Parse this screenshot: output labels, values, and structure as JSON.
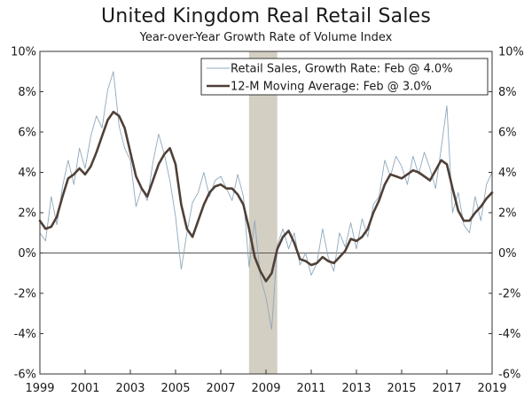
{
  "chart_data": {
    "type": "line",
    "title": "United Kingdom Real Retail Sales",
    "subtitle": "Year-over-Year Growth Rate of Volume Index",
    "xlabel": "",
    "ylabel": "",
    "xlim": [
      1999.0,
      2019.0
    ],
    "ylim": [
      -6,
      10
    ],
    "y_ticks": [
      10,
      8,
      6,
      4,
      2,
      0,
      -2,
      -4,
      -6
    ],
    "y_tick_labels_left": [
      "10%",
      "8%",
      "6%",
      "4%",
      "2%",
      "0%",
      "-2%",
      "-4%",
      "-6%"
    ],
    "y_tick_labels_right": [
      "10%",
      "8%",
      "6%",
      "4%",
      "2%",
      "0%",
      "-2%",
      "-4%",
      "-6%"
    ],
    "x_ticks": [
      1999,
      2001,
      2003,
      2005,
      2007,
      2009,
      2011,
      2013,
      2015,
      2017,
      2019
    ],
    "x_tick_labels": [
      "1999",
      "2001",
      "2003",
      "2005",
      "2007",
      "2009",
      "2011",
      "2013",
      "2015",
      "2017",
      "2019"
    ],
    "recession_shade": {
      "start": 2008.25,
      "end": 2009.5,
      "color": "#d4cfc3"
    },
    "legend": {
      "position": "top-right"
    },
    "series": [
      {
        "name": "Retail Sales, Growth Rate: Feb @ 4.0%",
        "color": "#8fa8bb",
        "style": "thin",
        "x": [
          1999.0,
          1999.25,
          1999.5,
          1999.75,
          2000.0,
          2000.25,
          2000.5,
          2000.75,
          2001.0,
          2001.25,
          2001.5,
          2001.75,
          2002.0,
          2002.25,
          2002.5,
          2002.75,
          2003.0,
          2003.25,
          2003.5,
          2003.75,
          2004.0,
          2004.25,
          2004.5,
          2004.75,
          2005.0,
          2005.25,
          2005.5,
          2005.75,
          2006.0,
          2006.25,
          2006.5,
          2006.75,
          2007.0,
          2007.25,
          2007.5,
          2007.75,
          2008.0,
          2008.25,
          2008.5,
          2008.75,
          2009.0,
          2009.25,
          2009.5,
          2009.75,
          2010.0,
          2010.25,
          2010.5,
          2010.75,
          2011.0,
          2011.25,
          2011.5,
          2011.75,
          2012.0,
          2012.25,
          2012.5,
          2012.75,
          2013.0,
          2013.25,
          2013.5,
          2013.75,
          2014.0,
          2014.25,
          2014.5,
          2014.75,
          2015.0,
          2015.25,
          2015.5,
          2015.75,
          2016.0,
          2016.25,
          2016.5,
          2016.75,
          2017.0,
          2017.25,
          2017.5,
          2017.75,
          2018.0,
          2018.25,
          2018.5,
          2018.75,
          2019.0
        ],
        "values": [
          1.0,
          0.6,
          2.8,
          1.4,
          3.3,
          4.6,
          3.4,
          5.2,
          4.2,
          5.8,
          6.8,
          6.2,
          8.1,
          9.0,
          6.3,
          5.2,
          4.6,
          2.3,
          3.2,
          2.6,
          4.5,
          5.9,
          4.9,
          3.6,
          1.8,
          -0.8,
          1.0,
          2.5,
          3.0,
          4.0,
          2.8,
          3.6,
          3.8,
          3.2,
          2.6,
          3.9,
          2.8,
          -0.7,
          1.6,
          -1.2,
          -2.2,
          -3.8,
          0.4,
          1.2,
          0.2,
          1.0,
          -0.6,
          0.0,
          -1.1,
          -0.5,
          1.2,
          -0.2,
          -0.9,
          1.0,
          0.3,
          1.5,
          0.2,
          1.7,
          0.8,
          2.4,
          2.8,
          4.6,
          3.8,
          4.8,
          4.3,
          3.4,
          4.8,
          3.9,
          5.0,
          4.2,
          3.2,
          5.2,
          7.3,
          2.0,
          3.0,
          1.4,
          1.0,
          2.8,
          1.6,
          3.4,
          4.0
        ]
      },
      {
        "name": "12-M Moving Average: Feb @ 3.0%",
        "color": "#4f4038",
        "style": "thick",
        "x": [
          1999.0,
          1999.25,
          1999.5,
          1999.75,
          2000.0,
          2000.25,
          2000.5,
          2000.75,
          2001.0,
          2001.25,
          2001.5,
          2001.75,
          2002.0,
          2002.25,
          2002.5,
          2002.75,
          2003.0,
          2003.25,
          2003.5,
          2003.75,
          2004.0,
          2004.25,
          2004.5,
          2004.75,
          2005.0,
          2005.25,
          2005.5,
          2005.75,
          2006.0,
          2006.25,
          2006.5,
          2006.75,
          2007.0,
          2007.25,
          2007.5,
          2007.75,
          2008.0,
          2008.25,
          2008.5,
          2008.75,
          2009.0,
          2009.25,
          2009.5,
          2009.75,
          2010.0,
          2010.25,
          2010.5,
          2010.75,
          2011.0,
          2011.25,
          2011.5,
          2011.75,
          2012.0,
          2012.25,
          2012.5,
          2012.75,
          2013.0,
          2013.25,
          2013.5,
          2013.75,
          2014.0,
          2014.25,
          2014.5,
          2014.75,
          2015.0,
          2015.25,
          2015.5,
          2015.75,
          2016.0,
          2016.25,
          2016.5,
          2016.75,
          2017.0,
          2017.25,
          2017.5,
          2017.75,
          2018.0,
          2018.25,
          2018.5,
          2018.75,
          2019.0
        ],
        "values": [
          1.6,
          1.2,
          1.3,
          1.8,
          2.8,
          3.7,
          3.9,
          4.2,
          3.9,
          4.3,
          5.0,
          5.8,
          6.6,
          7.0,
          6.8,
          6.2,
          5.0,
          3.8,
          3.2,
          2.8,
          3.6,
          4.4,
          4.9,
          5.2,
          4.4,
          2.4,
          1.2,
          0.8,
          1.6,
          2.4,
          3.0,
          3.3,
          3.4,
          3.2,
          3.2,
          2.9,
          2.4,
          1.2,
          -0.2,
          -0.9,
          -1.4,
          -1.0,
          0.2,
          0.8,
          1.1,
          0.5,
          -0.3,
          -0.4,
          -0.6,
          -0.5,
          -0.2,
          -0.4,
          -0.5,
          -0.2,
          0.1,
          0.7,
          0.6,
          0.8,
          1.2,
          2.0,
          2.6,
          3.4,
          3.9,
          3.8,
          3.7,
          3.9,
          4.1,
          4.0,
          3.8,
          3.6,
          4.1,
          4.6,
          4.4,
          3.2,
          2.1,
          1.6,
          1.6,
          2.0,
          2.3,
          2.7,
          3.0
        ]
      }
    ]
  }
}
